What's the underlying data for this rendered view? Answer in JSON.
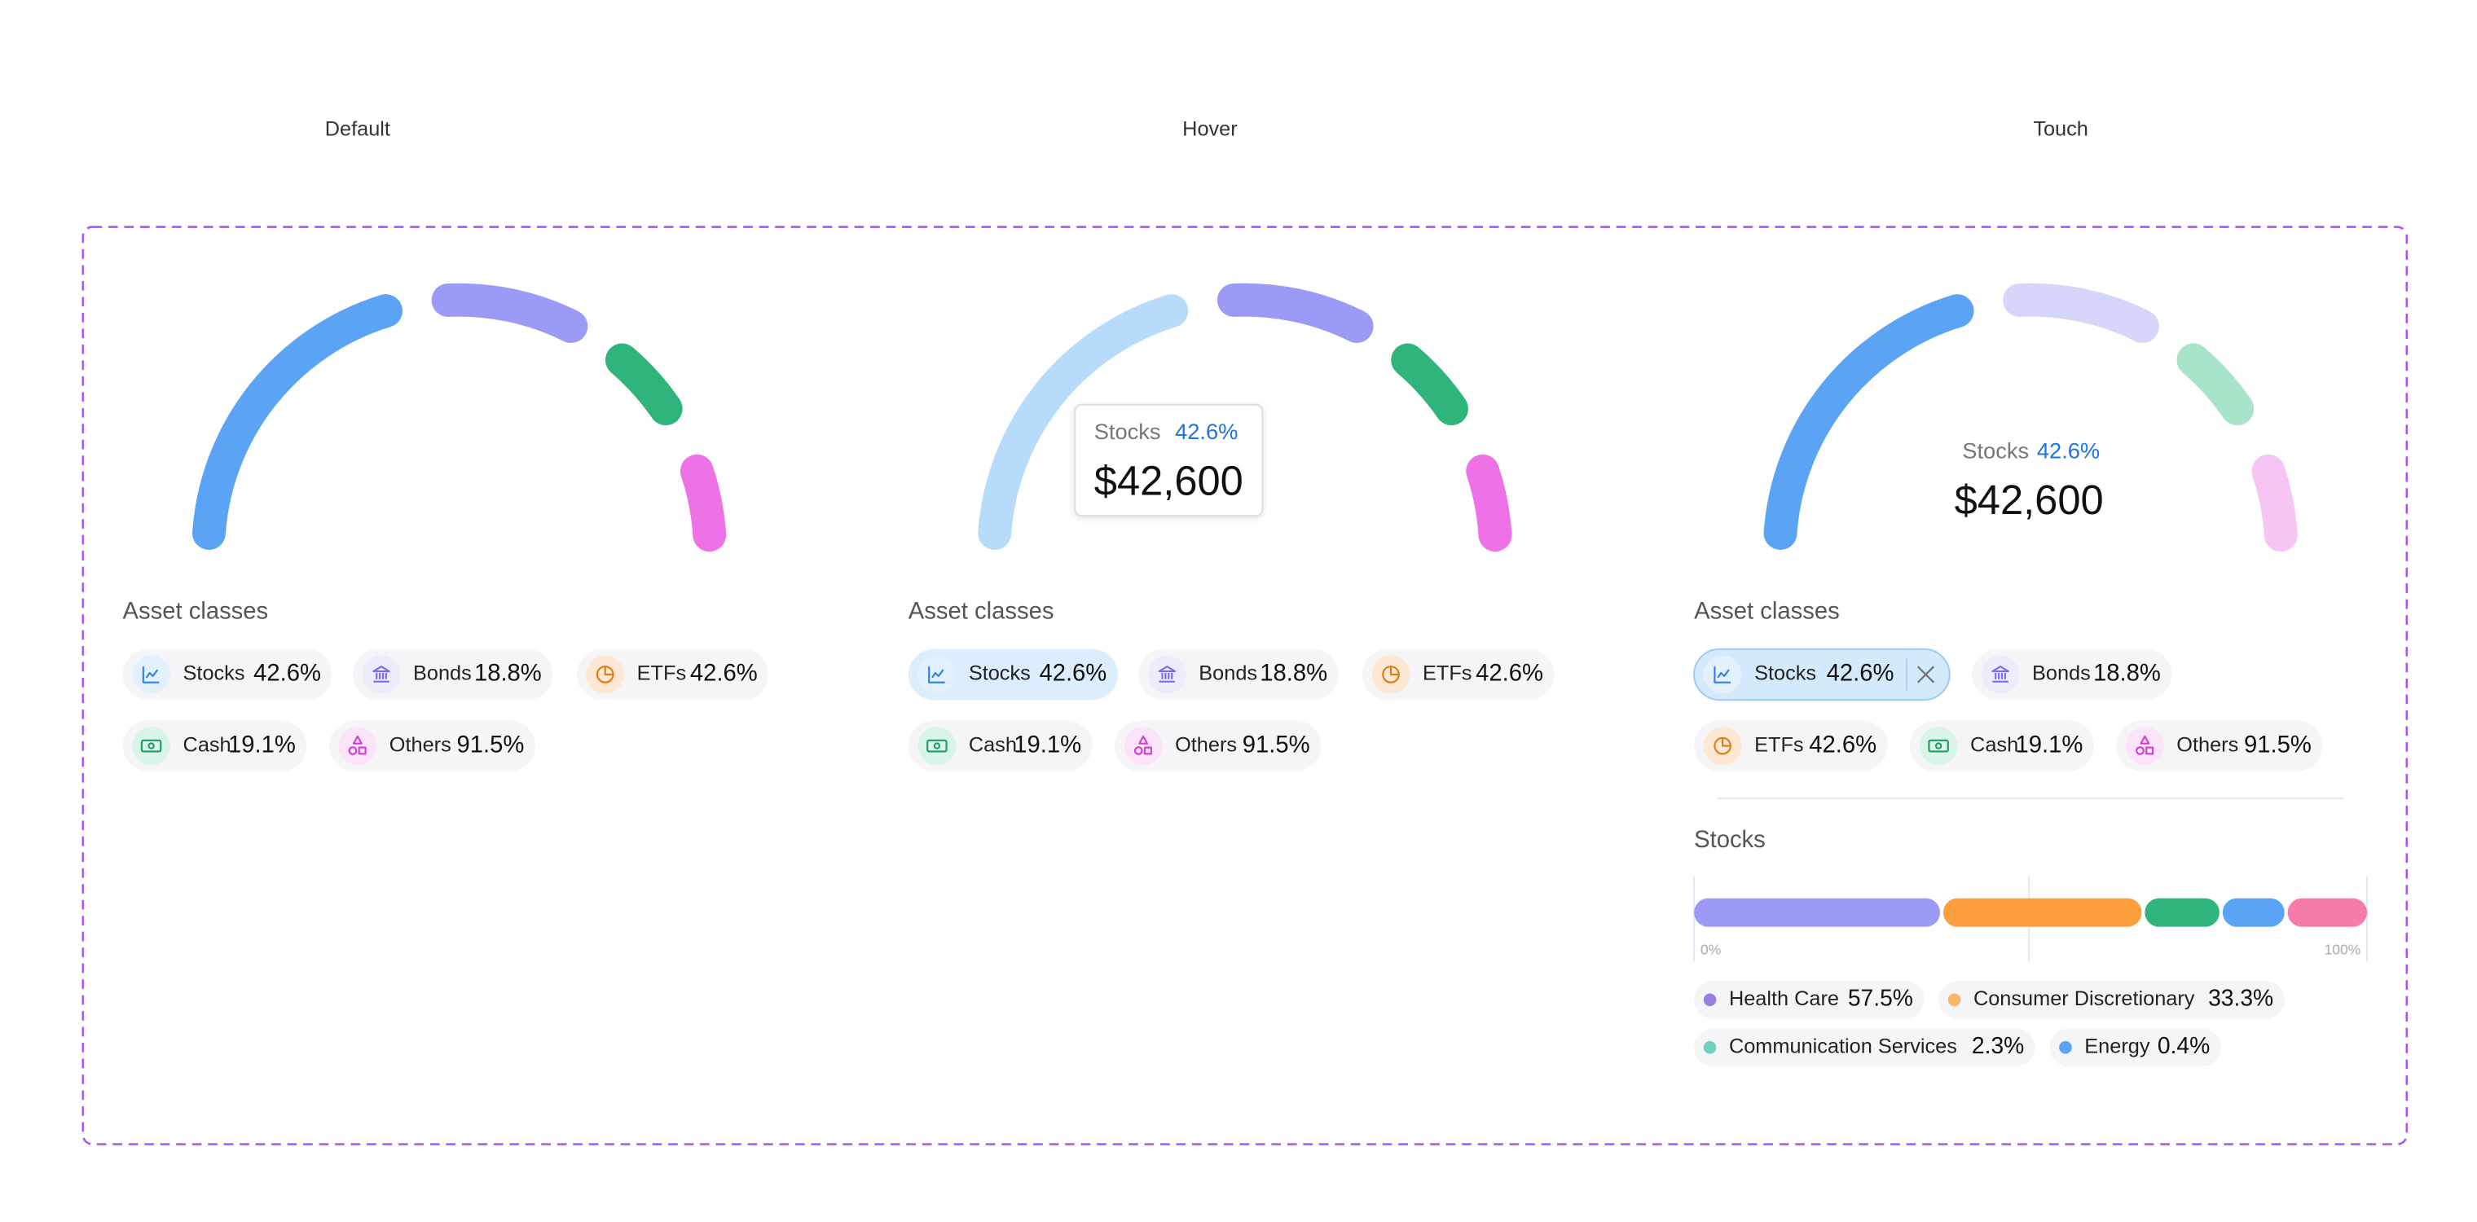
{
  "panels": [
    {
      "state": "Default",
      "legend_title": "Asset classes",
      "legend": [
        {
          "name": "Stocks",
          "value": "42.6%"
        },
        {
          "name": "Bonds",
          "value": "18.8%"
        },
        {
          "name": "ETFs",
          "value": "42.6%"
        },
        {
          "name": "Cash",
          "value": "19.1%"
        },
        {
          "name": "Others",
          "value": "91.5%"
        }
      ]
    },
    {
      "state": "Hover",
      "legend_title": "Asset classes",
      "tooltip": {
        "name": "Stocks",
        "share": "42.6%",
        "amount": "$42,600"
      },
      "legend": [
        {
          "name": "Stocks",
          "value": "42.6%"
        },
        {
          "name": "Bonds",
          "value": "18.8%"
        },
        {
          "name": "ETFs",
          "value": "42.6%"
        },
        {
          "name": "Cash",
          "value": "19.1%"
        },
        {
          "name": "Others",
          "value": "91.5%"
        }
      ]
    },
    {
      "state": "Touch",
      "legend_title": "Asset classes",
      "center": {
        "name": "Stocks",
        "share": "42.6%",
        "amount": "$42,600"
      },
      "legend": [
        {
          "name": "Stocks",
          "value": "42.6%"
        },
        {
          "name": "Bonds",
          "value": "18.8%"
        },
        {
          "name": "ETFs",
          "value": "42.6%"
        },
        {
          "name": "Cash",
          "value": "19.1%"
        },
        {
          "name": "Others",
          "value": "91.5%"
        }
      ],
      "detail": {
        "title": "Stocks",
        "axis_start": "0%",
        "axis_end": "100%",
        "legend": [
          {
            "name": "Health Care",
            "value": "57.5%"
          },
          {
            "name": "Consumer Discretionary",
            "value": "33.3%"
          },
          {
            "name": "Communication Services",
            "value": "2.3%"
          },
          {
            "name": "Energy",
            "value": "0.4%"
          }
        ]
      }
    }
  ]
}
